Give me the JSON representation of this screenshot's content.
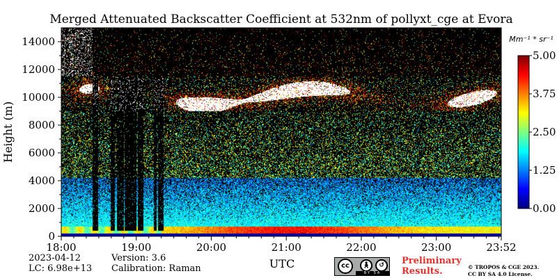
{
  "chart_data": {
    "type": "heatmap",
    "title": "Merged Attenuated Backscatter Coefficient at 532nm of pollyxt_cge at Evora",
    "xlabel": "UTC",
    "ylabel": "Height (m)",
    "x_ticks": [
      "18:00",
      "19:00",
      "20:00",
      "21:00",
      "22:00",
      "23:00",
      "23:52"
    ],
    "x_range": [
      "18:00",
      "23:52"
    ],
    "y_ticks": [
      0,
      2000,
      4000,
      6000,
      8000,
      10000,
      12000,
      14000
    ],
    "y_range": [
      0,
      15000
    ],
    "colorbar": {
      "unit_label": "Mm⁻¹ * sr⁻¹",
      "ticks": [
        "0.00",
        "1.25",
        "2.50",
        "3.75",
        "5.00"
      ],
      "range": [
        0,
        5
      ],
      "colormap": "jet"
    },
    "features": [
      {
        "type": "aerosol layer",
        "height_m": [
          0,
          700
        ],
        "value": 4.5
      },
      {
        "type": "boundary layer",
        "height_m": [
          700,
          3500
        ],
        "value": 1.5
      },
      {
        "type": "cloud layer",
        "height_m": [
          9000,
          11000
        ],
        "value": 5.0
      },
      {
        "type": "no signal / rain",
        "time": [
          "18:25",
          "19:20"
        ]
      }
    ]
  },
  "footer": {
    "date": "2023-04-12",
    "lc": "LC: 6.98e+13",
    "version": "Version: 3.6",
    "calibration": "Calibration: Raman",
    "preliminary_line1": "Preliminary",
    "preliminary_line2": "Results.",
    "copyright_line1": "© TROPOS & CGE 2023.",
    "copyright_line2": "CC BY SA 4.0 License."
  },
  "license_badge": {
    "cc": "cc",
    "strip": "BY SA"
  },
  "colors": {
    "preliminary": "#e8302d",
    "background_noise": "#000000"
  }
}
